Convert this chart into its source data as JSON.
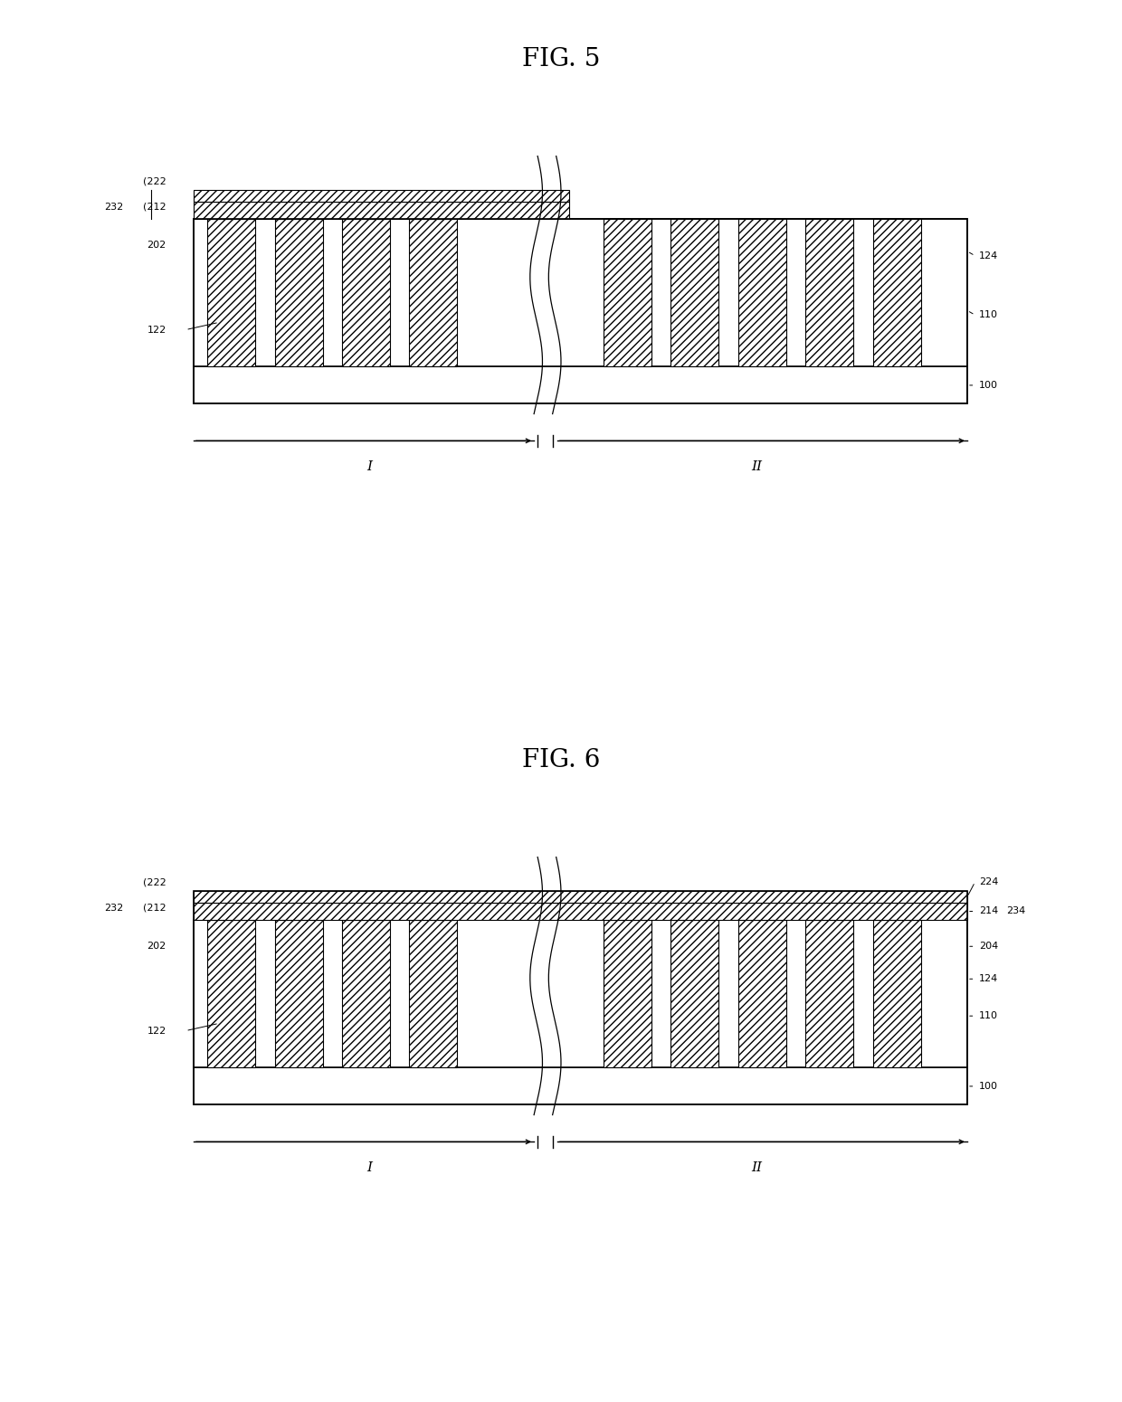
{
  "fig5_title": "FIG. 5",
  "fig6_title": "FIG. 6",
  "bg_color": "#ffffff",
  "diagrams": [
    {
      "fig_num": 5,
      "left_labels": [
        "222",
        "212",
        "232",
        "202",
        "122"
      ],
      "right_labels": [
        "124",
        "110",
        "100"
      ]
    },
    {
      "fig_num": 6,
      "left_labels": [
        "222",
        "212",
        "232",
        "202",
        "122"
      ],
      "right_labels": [
        "224",
        "214",
        "234",
        "204",
        "124",
        "110",
        "100"
      ]
    }
  ]
}
